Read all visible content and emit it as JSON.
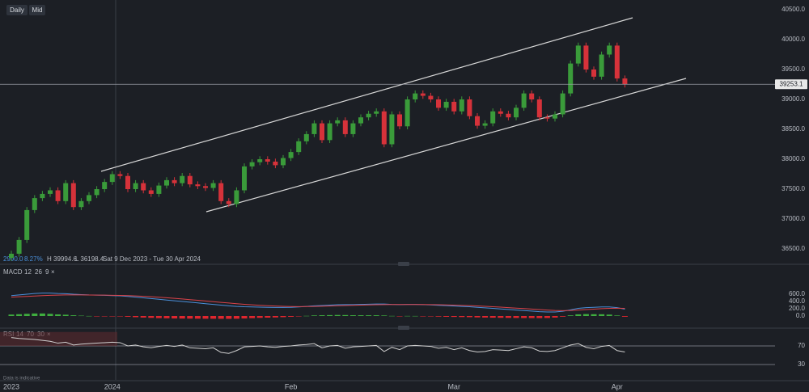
{
  "toolbar": {
    "buttons": [
      "Daily",
      "Mid"
    ]
  },
  "footer": "Data is indicative",
  "chart_data": [
    {
      "type": "candlestick",
      "info": {
        "change": "2990.0",
        "change_pct": "8.27%",
        "high": "H 39994.6",
        "low": "L 36198.4",
        "range": "Sat 9 Dec 2023 - Tue 30 Apr 2024"
      },
      "up_color": "#3a9b3a",
      "down_color": "#d6323a",
      "categories": [
        "2023",
        null,
        null,
        null,
        null,
        null,
        null,
        null,
        null,
        null,
        null,
        null,
        null,
        "2024",
        null,
        null,
        null,
        null,
        null,
        null,
        null,
        null,
        null,
        null,
        null,
        null,
        null,
        null,
        null,
        null,
        null,
        null,
        null,
        null,
        null,
        null,
        "Feb",
        null,
        null,
        null,
        null,
        null,
        null,
        null,
        null,
        null,
        null,
        null,
        null,
        null,
        null,
        null,
        null,
        null,
        null,
        null,
        null,
        "Mar",
        null,
        null,
        null,
        null,
        null,
        null,
        null,
        null,
        null,
        null,
        null,
        null,
        null,
        null,
        null,
        null,
        null,
        null,
        null,
        null,
        "Apr",
        null
      ],
      "open": [
        36350,
        36420,
        36650,
        37150,
        37350,
        37420,
        37480,
        37300,
        37600,
        37200,
        37300,
        37400,
        37500,
        37620,
        37750,
        37720,
        37500,
        37600,
        37480,
        37420,
        37560,
        37650,
        37600,
        37720,
        37580,
        37550,
        37520,
        37600,
        37300,
        37250,
        37480,
        37880,
        37950,
        38000,
        37960,
        37900,
        38020,
        38120,
        38300,
        38420,
        38600,
        38320,
        38600,
        38650,
        38420,
        38600,
        38700,
        38760,
        38800,
        38250,
        38750,
        38550,
        39000,
        39100,
        39060,
        39000,
        38860,
        38960,
        38800,
        39000,
        38720,
        38560,
        38600,
        38800,
        38760,
        38700,
        38860,
        39100,
        39000,
        38700,
        38680,
        38750,
        39100,
        39600,
        39900,
        39500,
        39380,
        39750,
        39900,
        39350
      ],
      "high": [
        36470,
        36700,
        37200,
        37400,
        37470,
        37530,
        37530,
        37650,
        37650,
        37350,
        37450,
        37550,
        37670,
        37800,
        37800,
        37770,
        37650,
        37650,
        37530,
        37610,
        37700,
        37700,
        37770,
        37770,
        37630,
        37600,
        37650,
        37650,
        37350,
        37530,
        37930,
        38000,
        38050,
        38050,
        38010,
        38070,
        38170,
        38350,
        38470,
        38650,
        38650,
        38650,
        38700,
        38700,
        38650,
        38750,
        38810,
        38850,
        38850,
        38800,
        38800,
        39050,
        39150,
        39150,
        39110,
        39050,
        39010,
        39010,
        39050,
        39050,
        38770,
        38650,
        38850,
        38850,
        38810,
        38910,
        39150,
        39150,
        39050,
        38750,
        38800,
        39150,
        39650,
        39950,
        39950,
        39550,
        39800,
        39950,
        39950,
        39400
      ],
      "low": [
        36300,
        36370,
        36600,
        37100,
        37300,
        37370,
        37250,
        37250,
        37150,
        37150,
        37250,
        37350,
        37450,
        37570,
        37670,
        37450,
        37450,
        37430,
        37370,
        37370,
        37510,
        37550,
        37550,
        37530,
        37500,
        37470,
        37470,
        37250,
        37200,
        37200,
        37430,
        37830,
        37900,
        37910,
        37850,
        37850,
        37970,
        38070,
        38250,
        38370,
        38270,
        38270,
        38550,
        38370,
        38370,
        38550,
        38650,
        38710,
        38200,
        38200,
        38500,
        38500,
        38950,
        39010,
        38950,
        38810,
        38810,
        38750,
        38750,
        38670,
        38510,
        38510,
        38550,
        38710,
        38650,
        38650,
        38810,
        38950,
        38650,
        38630,
        38630,
        38700,
        39050,
        39550,
        39450,
        39330,
        39330,
        39700,
        39300,
        39200
      ],
      "close": [
        36420,
        36650,
        37150,
        37350,
        37420,
        37480,
        37300,
        37600,
        37200,
        37300,
        37400,
        37500,
        37620,
        37750,
        37720,
        37500,
        37600,
        37480,
        37420,
        37560,
        37650,
        37600,
        37720,
        37580,
        37550,
        37520,
        37600,
        37300,
        37250,
        37480,
        37880,
        37950,
        38000,
        37960,
        37900,
        38020,
        38120,
        38300,
        38420,
        38600,
        38320,
        38600,
        38650,
        38420,
        38600,
        38700,
        38760,
        38800,
        38250,
        38750,
        38550,
        39000,
        39100,
        39060,
        39000,
        38860,
        38960,
        38800,
        39000,
        38720,
        38560,
        38600,
        38800,
        38760,
        38700,
        38860,
        39100,
        39000,
        38700,
        38680,
        38750,
        39100,
        39600,
        39900,
        39500,
        39380,
        39750,
        39900,
        39350,
        39253.1
      ],
      "ylim": [
        36365,
        40662
      ],
      "yticks": [
        {
          "value": 36500,
          "label": "36500.0"
        },
        {
          "value": 37000,
          "label": "37000.0"
        },
        {
          "value": 37500,
          "label": "37500.0"
        },
        {
          "value": 38000,
          "label": "38000.0"
        },
        {
          "value": 38500,
          "label": "38500.0"
        },
        {
          "value": 39000,
          "label": "39000.0"
        },
        {
          "value": 39500,
          "label": "39500.0"
        },
        {
          "value": 40000,
          "label": "40000.0"
        },
        {
          "value": 40500,
          "label": "40500.0"
        }
      ],
      "grid": false
    },
    {
      "type": "macd",
      "title": "MACD",
      "params": [
        "12",
        "26",
        "9"
      ],
      "close_icon": "×",
      "ylim": [
        -300,
        1200
      ],
      "yticks": [
        {
          "value": 0,
          "label": "0.0"
        },
        {
          "value": 200,
          "label": "200.0"
        },
        {
          "value": 400,
          "label": "400.0"
        },
        {
          "value": 600,
          "label": "600.0"
        }
      ],
      "grid": false,
      "series": [
        {
          "type": "line",
          "color": "#4a8fd9",
          "values": [
            560,
            580,
            600,
            620,
            630,
            630,
            620,
            615,
            600,
            590,
            580,
            575,
            570,
            560,
            555,
            540,
            520,
            500,
            480,
            460,
            440,
            420,
            400,
            380,
            360,
            340,
            320,
            300,
            280,
            265,
            255,
            250,
            245,
            240,
            235,
            235,
            240,
            250,
            265,
            280,
            290,
            300,
            310,
            315,
            315,
            320,
            325,
            330,
            330,
            320,
            315,
            320,
            320,
            315,
            305,
            295,
            285,
            275,
            265,
            255,
            240,
            225,
            210,
            195,
            180,
            165,
            150,
            135,
            120,
            110,
            110,
            130,
            170,
            210,
            230,
            240,
            250,
            250,
            230,
            190
          ]
        },
        {
          "type": "line",
          "color": "#d9434a",
          "values": [
            520,
            530,
            540,
            550,
            560,
            570,
            575,
            580,
            580,
            580,
            578,
            576,
            574,
            570,
            566,
            560,
            552,
            542,
            530,
            517,
            502,
            486,
            469,
            451,
            433,
            414,
            395,
            376,
            357,
            339,
            322,
            308,
            295,
            284,
            274,
            266,
            261,
            259,
            260,
            264,
            269,
            275,
            282,
            289,
            294,
            299,
            305,
            310,
            315,
            316,
            316,
            317,
            318,
            317,
            315,
            311,
            306,
            300,
            293,
            286,
            277,
            267,
            256,
            244,
            231,
            218,
            205,
            191,
            177,
            164,
            153,
            148,
            152,
            164,
            177,
            190,
            202,
            211,
            215,
            210
          ]
        },
        {
          "type": "bar",
          "color": "#3fae3f",
          "negative_color": "#e0262e",
          "values": [
            40,
            50,
            60,
            70,
            70,
            60,
            45,
            35,
            20,
            10,
            2,
            -1,
            -4,
            -10,
            -11,
            -20,
            -32,
            -42,
            -50,
            -57,
            -62,
            -66,
            -69,
            -71,
            -73,
            -74,
            -75,
            -76,
            -77,
            -74,
            -67,
            -58,
            -50,
            -44,
            -39,
            -31,
            -21,
            -9,
            5,
            16,
            21,
            25,
            28,
            26,
            21,
            21,
            20,
            20,
            15,
            4,
            -1,
            3,
            2,
            -2,
            -10,
            -16,
            -21,
            -25,
            -28,
            -31,
            -37,
            -42,
            -46,
            -49,
            -51,
            -53,
            -55,
            -56,
            -57,
            -54,
            -43,
            -18,
            18,
            46,
            53,
            50,
            48,
            39,
            15,
            -20
          ]
        }
      ]
    },
    {
      "type": "rsi",
      "title": "RSI",
      "params": [
        "14",
        "70",
        "30"
      ],
      "close_icon": "×",
      "ylim": [
        0,
        100
      ],
      "yticks": [
        30,
        70
      ],
      "grid": true,
      "series": [
        {
          "type": "line",
          "color": "#d0d0d0",
          "values": [
            88,
            86,
            85,
            84,
            82,
            80,
            76,
            78,
            72,
            74,
            75,
            76,
            77,
            78,
            77,
            70,
            72,
            68,
            66,
            69,
            71,
            69,
            72,
            66,
            65,
            64,
            66,
            56,
            54,
            60,
            68,
            69,
            70,
            68,
            67,
            69,
            70,
            72,
            73,
            75,
            66,
            70,
            71,
            65,
            68,
            69,
            70,
            71,
            58,
            67,
            62,
            70,
            71,
            70,
            69,
            65,
            67,
            62,
            66,
            60,
            57,
            58,
            62,
            61,
            60,
            64,
            68,
            66,
            59,
            58,
            60,
            66,
            72,
            75,
            67,
            64,
            69,
            71,
            60,
            57
          ]
        }
      ]
    }
  ]
}
